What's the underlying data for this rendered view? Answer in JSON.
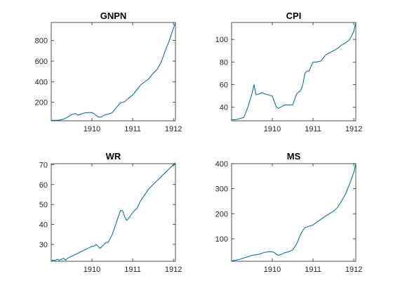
{
  "chart_data": [
    {
      "type": "line",
      "title": "GNPN",
      "xlim": [
        1909.0,
        1912.05
      ],
      "ylim": [
        20,
        975
      ],
      "xticks": [
        1910,
        1911,
        1912
      ],
      "xtick_labels": [
        "1910",
        "1911",
        "1912"
      ],
      "yticks": [
        200,
        400,
        600,
        800
      ],
      "ytick_labels": [
        "200",
        "400",
        "600",
        "800"
      ],
      "color": "#0072BD",
      "x": [
        1909.0,
        1909.1,
        1909.2,
        1909.3,
        1909.4,
        1909.5,
        1909.6,
        1909.65,
        1909.7,
        1909.75,
        1909.8,
        1909.85,
        1909.9,
        1910.0,
        1910.05,
        1910.1,
        1910.15,
        1910.2,
        1910.25,
        1910.3,
        1910.35,
        1910.4,
        1910.5,
        1910.6,
        1910.7,
        1910.8,
        1910.9,
        1911.0,
        1911.1,
        1911.2,
        1911.3,
        1911.4,
        1911.5,
        1911.6,
        1911.7,
        1911.8,
        1911.9,
        1912.0,
        1912.05
      ],
      "y": [
        25,
        25,
        27,
        35,
        55,
        82,
        90,
        75,
        80,
        88,
        95,
        98,
        100,
        100,
        90,
        72,
        58,
        55,
        62,
        75,
        80,
        85,
        100,
        150,
        195,
        205,
        240,
        270,
        320,
        370,
        400,
        430,
        480,
        520,
        590,
        700,
        800,
        920,
        970
      ]
    },
    {
      "type": "line",
      "title": "CPI",
      "xlim": [
        1909.0,
        1912.05
      ],
      "ylim": [
        28,
        115
      ],
      "xticks": [
        1910,
        1911,
        1912
      ],
      "xtick_labels": [
        "1910",
        "1911",
        "1912"
      ],
      "yticks": [
        40,
        60,
        80,
        100
      ],
      "ytick_labels": [
        "40",
        "60",
        "80",
        "100"
      ],
      "color": "#0072BD",
      "x": [
        1909.0,
        1909.1,
        1909.2,
        1909.3,
        1909.4,
        1909.5,
        1909.55,
        1909.6,
        1909.7,
        1909.75,
        1909.8,
        1909.9,
        1910.0,
        1910.05,
        1910.1,
        1910.15,
        1910.2,
        1910.3,
        1910.4,
        1910.5,
        1910.6,
        1910.7,
        1910.75,
        1910.8,
        1910.85,
        1910.9,
        1911.0,
        1911.1,
        1911.2,
        1911.3,
        1911.4,
        1911.5,
        1911.6,
        1911.7,
        1911.8,
        1911.9,
        1912.0,
        1912.05
      ],
      "y": [
        29,
        29,
        30,
        31,
        40,
        52,
        60,
        51,
        52,
        53,
        52,
        51,
        50,
        45,
        40,
        39,
        40,
        42,
        42,
        42,
        52,
        55,
        60,
        70,
        72,
        72,
        80,
        80,
        81,
        86,
        88,
        90,
        92,
        95,
        97,
        100,
        107,
        115
      ]
    },
    {
      "type": "line",
      "title": "WR",
      "xlim": [
        1909.0,
        1912.05
      ],
      "ylim": [
        21.5,
        70.5
      ],
      "xticks": [
        1910,
        1911,
        1912
      ],
      "xtick_labels": [
        "1910",
        "1911",
        "1912"
      ],
      "yticks": [
        30,
        40,
        50,
        60,
        70
      ],
      "ytick_labels": [
        "30",
        "40",
        "50",
        "60",
        "70"
      ],
      "color": "#0072BD",
      "x": [
        1909.0,
        1909.1,
        1909.15,
        1909.2,
        1909.3,
        1909.35,
        1909.4,
        1909.5,
        1909.6,
        1909.7,
        1909.8,
        1909.9,
        1910.0,
        1910.05,
        1910.1,
        1910.15,
        1910.2,
        1910.3,
        1910.35,
        1910.4,
        1910.5,
        1910.6,
        1910.7,
        1910.75,
        1910.8,
        1910.85,
        1910.9,
        1911.0,
        1911.1,
        1911.2,
        1911.3,
        1911.4,
        1911.5,
        1911.6,
        1911.7,
        1911.8,
        1911.9,
        1912.0,
        1912.05
      ],
      "y": [
        22,
        22,
        22.5,
        22,
        23,
        22,
        23,
        24,
        25,
        26,
        27,
        28,
        29,
        29,
        30,
        29,
        28,
        30,
        31,
        31,
        35,
        41,
        47,
        47,
        44,
        42,
        43,
        46,
        48,
        52,
        55,
        58,
        60,
        62,
        64,
        66,
        68,
        70,
        71
      ]
    },
    {
      "type": "line",
      "title": "MS",
      "xlim": [
        1909.0,
        1912.05
      ],
      "ylim": [
        10,
        400
      ],
      "xticks": [
        1910,
        1911,
        1912
      ],
      "xtick_labels": [
        "1910",
        "1911",
        "1912"
      ],
      "yticks": [
        100,
        200,
        300,
        400
      ],
      "ytick_labels": [
        "100",
        "200",
        "300",
        "400"
      ],
      "color": "#0072BD",
      "x": [
        1909.0,
        1909.1,
        1909.2,
        1909.3,
        1909.4,
        1909.5,
        1909.6,
        1909.7,
        1909.8,
        1909.9,
        1910.0,
        1910.05,
        1910.1,
        1910.15,
        1910.2,
        1910.3,
        1910.4,
        1910.5,
        1910.6,
        1910.7,
        1910.8,
        1910.9,
        1911.0,
        1911.1,
        1911.2,
        1911.3,
        1911.4,
        1911.5,
        1911.6,
        1911.7,
        1911.8,
        1911.9,
        1912.0,
        1912.05
      ],
      "y": [
        12,
        14,
        18,
        23,
        28,
        34,
        36,
        40,
        45,
        48,
        48,
        45,
        38,
        34,
        36,
        44,
        48,
        55,
        80,
        120,
        145,
        150,
        155,
        168,
        178,
        190,
        200,
        210,
        225,
        250,
        280,
        320,
        365,
        400
      ]
    }
  ]
}
